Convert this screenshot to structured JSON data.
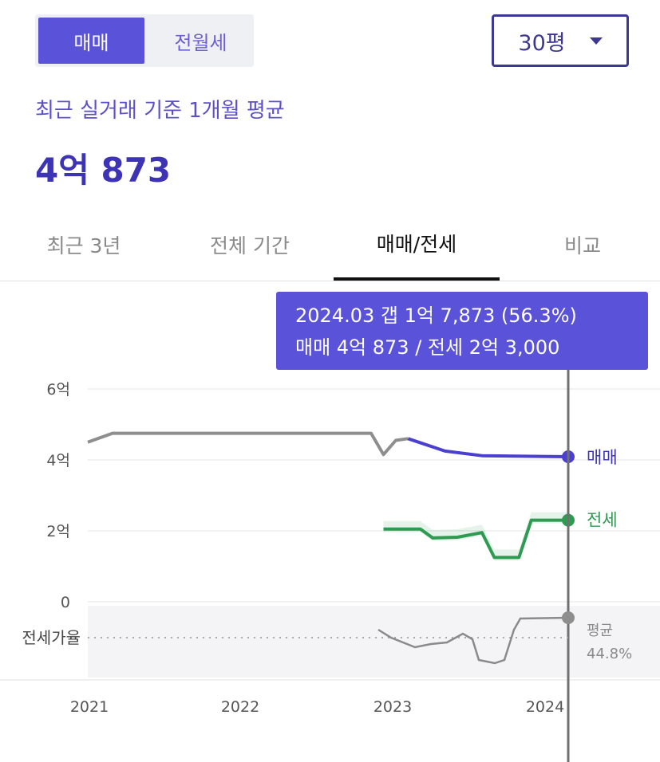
{
  "toggle": {
    "items": [
      "매매",
      "전월세"
    ],
    "selected": "매매"
  },
  "size_select": {
    "value": "30평"
  },
  "summary": {
    "label": "최근 실거래 기준 1개월 평균",
    "value": "4억 873"
  },
  "tabs": [
    {
      "label": "최근 3년",
      "active": false
    },
    {
      "label": "전체 기간",
      "active": false
    },
    {
      "label": "매매/전세",
      "active": true
    },
    {
      "label": "비교",
      "active": false
    }
  ],
  "tooltip": {
    "line1": "2024.03  갭 1억 7,873 (56.3%)",
    "line2": "매매 4억 873 / 전세 2억 3,000"
  },
  "colors": {
    "sale": "#4a3fd0",
    "jeonse": "#2f9a52",
    "ratio": "#8e8e8e",
    "accent": "#5a52d8"
  },
  "chart_data": {
    "type": "line",
    "x_ticks": [
      "2021",
      "2022",
      "2023",
      "2024"
    ],
    "y_ticks": [
      "6억",
      "4억",
      "2억",
      "0"
    ],
    "y_unit": "억",
    "ylim": [
      0,
      6
    ],
    "series": [
      {
        "name": "매매",
        "points": [
          [
            "2020.12",
            4.5
          ],
          [
            "2021.02",
            4.75
          ],
          [
            "2021.06",
            4.75
          ],
          [
            "2022.06",
            4.75
          ],
          [
            "2022.11",
            4.75
          ],
          [
            "2022.12",
            4.15
          ],
          [
            "2023.01",
            4.55
          ],
          [
            "2023.02",
            4.6
          ],
          [
            "2023.05",
            4.25
          ],
          [
            "2023.08",
            4.12
          ],
          [
            "2024.03",
            4.09
          ]
        ]
      },
      {
        "name": "전세",
        "points": [
          [
            "2022.12",
            2.05
          ],
          [
            "2023.03",
            2.05
          ],
          [
            "2023.04",
            1.8
          ],
          [
            "2023.06",
            1.82
          ],
          [
            "2023.08",
            1.95
          ],
          [
            "2023.09",
            1.25
          ],
          [
            "2023.11",
            1.25
          ],
          [
            "2023.12",
            2.3
          ],
          [
            "2024.03",
            2.3
          ]
        ]
      }
    ],
    "ratio_series": {
      "name": "전세가율",
      "average_label": "평균",
      "average_value": "44.8%"
    },
    "selected_point": "2024.03"
  }
}
